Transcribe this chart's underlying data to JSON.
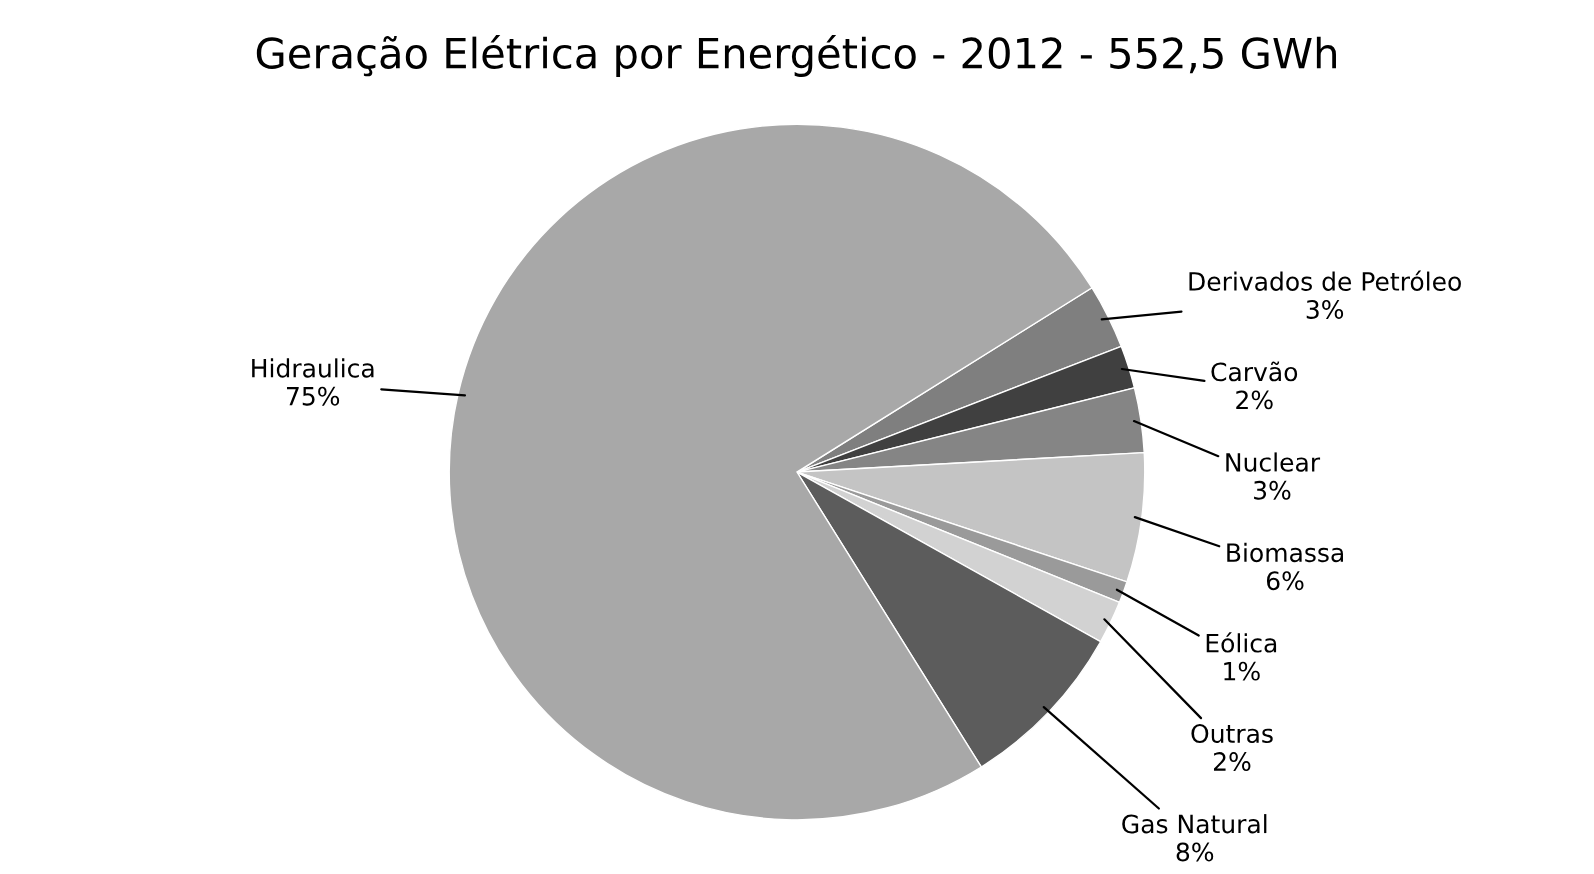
{
  "chart_data": {
    "type": "pie",
    "title": "Geração Elétrica por Energético - 2012 - 552,5 GWh",
    "categories": [
      "Derivados de Petróleo",
      "Carvão",
      "Nuclear",
      "Biomassa",
      "Eólica",
      "Outras",
      "Gas Natural",
      "Hidraulica"
    ],
    "values": [
      3,
      2,
      3,
      6,
      1,
      2,
      8,
      75
    ],
    "value_labels": [
      "3%",
      "2%",
      "3%",
      "6%",
      "1%",
      "2%",
      "8%",
      "75%"
    ],
    "colors": [
      "#7f7f7f",
      "#404040",
      "#858585",
      "#c4c4c4",
      "#9a9a9a",
      "#d2d2d2",
      "#5c5c5c",
      "#a8a8a8"
    ],
    "legend": false
  }
}
